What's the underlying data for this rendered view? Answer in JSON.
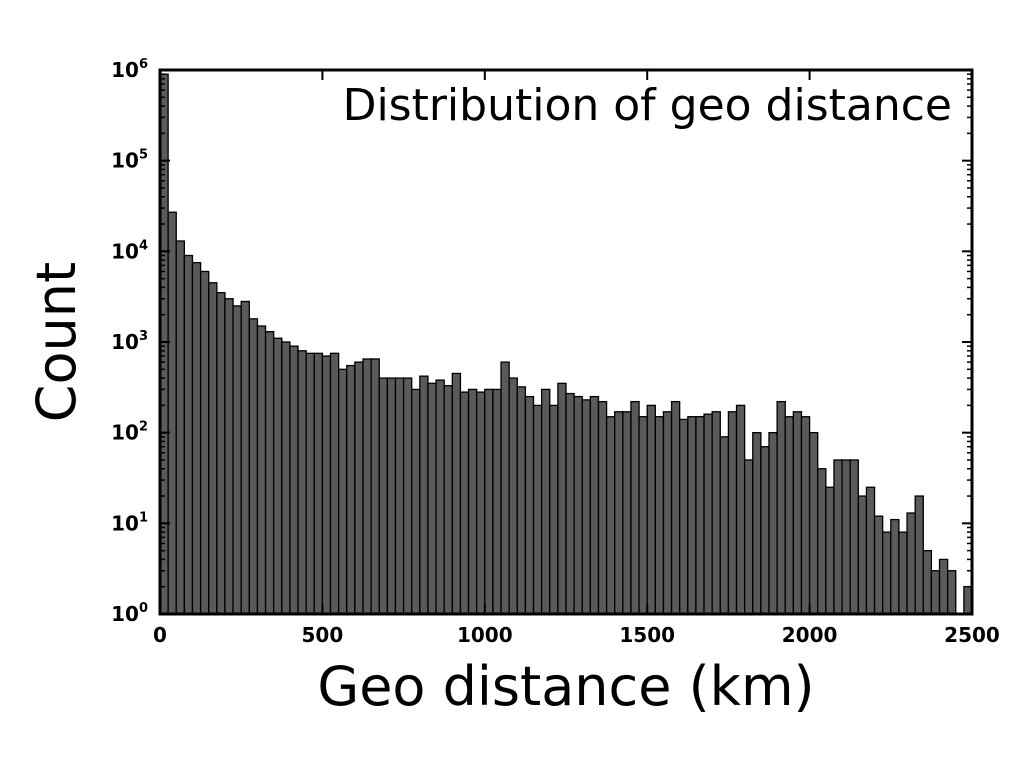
{
  "chart_data": {
    "type": "bar",
    "title": "Distribution of geo distance",
    "xlabel": "Geo distance (km)",
    "ylabel": "Count",
    "yscale": "log",
    "xlim": [
      0,
      2500
    ],
    "ylim": [
      1,
      1000000
    ],
    "x_ticks": [
      0,
      500,
      1000,
      1500,
      2000,
      2500
    ],
    "x_tick_labels": [
      "0",
      "500",
      "1000",
      "1500",
      "2000",
      "2500"
    ],
    "y_ticks": [
      1,
      10,
      100,
      1000,
      10000,
      100000,
      1000000
    ],
    "y_tick_labels": [
      {
        "base": "10",
        "exp": "0"
      },
      {
        "base": "10",
        "exp": "1"
      },
      {
        "base": "10",
        "exp": "2"
      },
      {
        "base": "10",
        "exp": "3"
      },
      {
        "base": "10",
        "exp": "4"
      },
      {
        "base": "10",
        "exp": "5"
      },
      {
        "base": "10",
        "exp": "6"
      }
    ],
    "bin_width_km": 25,
    "bin_starts_km": [
      0,
      25,
      50,
      75,
      100,
      125,
      150,
      175,
      200,
      225,
      250,
      275,
      300,
      325,
      350,
      375,
      400,
      425,
      450,
      475,
      500,
      525,
      550,
      575,
      600,
      625,
      650,
      675,
      700,
      725,
      750,
      775,
      800,
      825,
      850,
      875,
      900,
      925,
      950,
      975,
      1000,
      1025,
      1050,
      1075,
      1100,
      1125,
      1150,
      1175,
      1200,
      1225,
      1250,
      1275,
      1300,
      1325,
      1350,
      1375,
      1400,
      1425,
      1450,
      1475,
      1500,
      1525,
      1550,
      1575,
      1600,
      1625,
      1650,
      1675,
      1700,
      1725,
      1750,
      1775,
      1800,
      1825,
      1850,
      1875,
      1900,
      1925,
      1950,
      1975,
      2000,
      2025,
      2050,
      2075,
      2100,
      2125,
      2150,
      2175,
      2200,
      2225,
      2250,
      2275,
      2300,
      2325,
      2350,
      2375,
      2400,
      2425,
      2450,
      2475
    ],
    "counts": [
      900000,
      27000,
      13000,
      9000,
      7500,
      6000,
      4500,
      3500,
      3000,
      2500,
      2800,
      1800,
      1500,
      1300,
      1100,
      1000,
      900,
      800,
      750,
      750,
      700,
      750,
      500,
      550,
      600,
      650,
      650,
      400,
      400,
      400,
      400,
      300,
      420,
      350,
      380,
      330,
      450,
      280,
      300,
      280,
      300,
      300,
      600,
      400,
      320,
      250,
      200,
      300,
      200,
      350,
      270,
      250,
      230,
      250,
      220,
      150,
      170,
      170,
      220,
      150,
      200,
      150,
      170,
      220,
      140,
      150,
      150,
      160,
      170,
      90,
      170,
      200,
      50,
      100,
      70,
      100,
      220,
      150,
      170,
      150,
      100,
      40,
      25,
      50,
      50,
      50,
      20,
      25,
      12,
      8,
      11,
      8,
      13,
      20,
      5,
      3,
      4,
      3,
      1,
      2
    ]
  }
}
